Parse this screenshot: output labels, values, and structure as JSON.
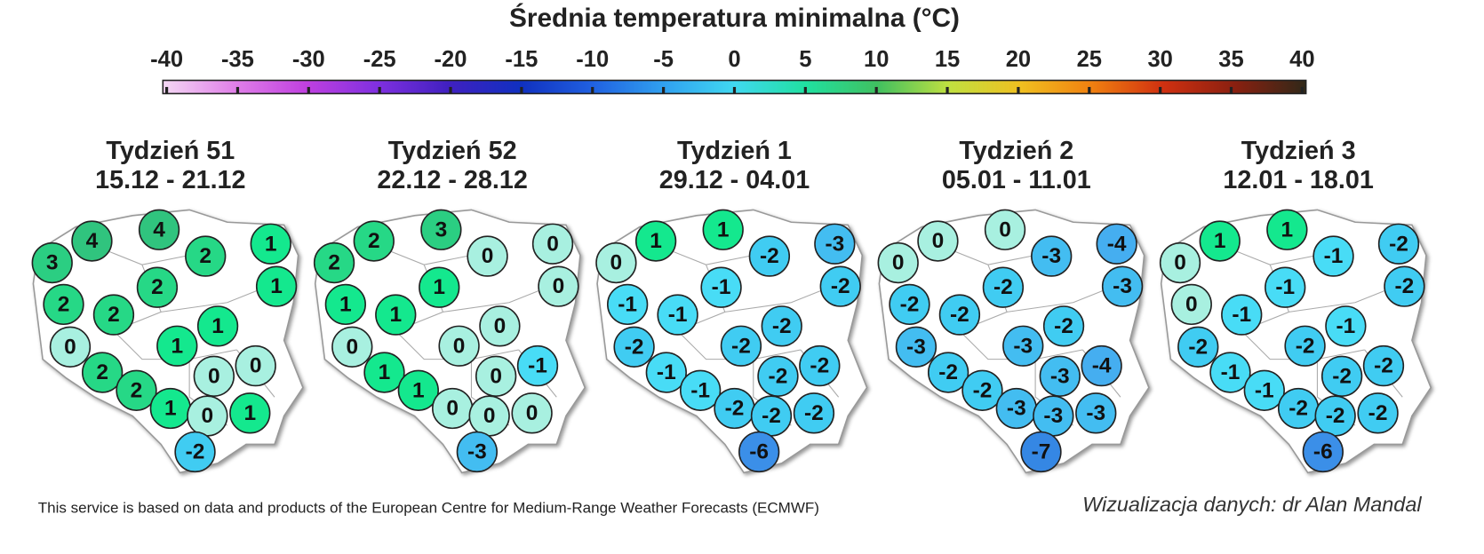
{
  "title": "Średnia temperatura minimalna (°C)",
  "colorbar": {
    "xlim": [
      -40,
      40
    ],
    "ticks": [
      -40,
      -35,
      -30,
      -25,
      -20,
      -15,
      -10,
      -5,
      0,
      5,
      10,
      15,
      20,
      25,
      30,
      35,
      40
    ],
    "colors": [
      "#f4d8f4",
      "#e080e8",
      "#c040e0",
      "#8030e0",
      "#4020c0",
      "#1030c0",
      "#2060e0",
      "#30a0f0",
      "#40d8f0",
      "#20e0a0",
      "#40c060",
      "#c0e040",
      "#f0c020",
      "#f08010",
      "#d03010",
      "#8a2010",
      "#302818"
    ]
  },
  "panels": [
    {
      "title": "Tydzień 51",
      "dates": "15.12 - 21.12",
      "values": [
        3,
        4,
        4,
        2,
        1,
        1,
        2,
        2,
        2,
        1,
        1,
        0,
        2,
        2,
        1,
        0,
        0,
        0,
        1,
        -2
      ]
    },
    {
      "title": "Tydzień 52",
      "dates": "22.12 - 28.12",
      "values": [
        2,
        2,
        3,
        0,
        0,
        0,
        1,
        1,
        1,
        0,
        0,
        0,
        1,
        1,
        0,
        0,
        -1,
        0,
        0,
        -3
      ]
    },
    {
      "title": "Tydzień 1",
      "dates": "29.12 - 04.01",
      "values": [
        0,
        1,
        1,
        -2,
        -3,
        -2,
        -1,
        -1,
        -1,
        -2,
        -2,
        -2,
        -1,
        -1,
        -2,
        -2,
        -2,
        -2,
        -2,
        -6
      ]
    },
    {
      "title": "Tydzień 2",
      "dates": "05.01 - 11.01",
      "values": [
        0,
        0,
        0,
        -3,
        -4,
        -3,
        -2,
        -2,
        -2,
        -2,
        -3,
        -3,
        -2,
        -2,
        -3,
        -3,
        -4,
        -3,
        -3,
        -7
      ]
    },
    {
      "title": "Tydzień 3",
      "dates": "12.01 - 18.01",
      "values": [
        0,
        1,
        1,
        -1,
        -2,
        -2,
        0,
        -1,
        -1,
        -1,
        -2,
        -2,
        -1,
        -1,
        -2,
        -2,
        -2,
        -2,
        -2,
        -6
      ]
    }
  ],
  "footer_left": "This service is based on data and products of the European Centre for Medium-Range Weather Forecasts (ECMWF)",
  "footer_right": "Wizualizacja danych: dr Alan Mandal"
}
